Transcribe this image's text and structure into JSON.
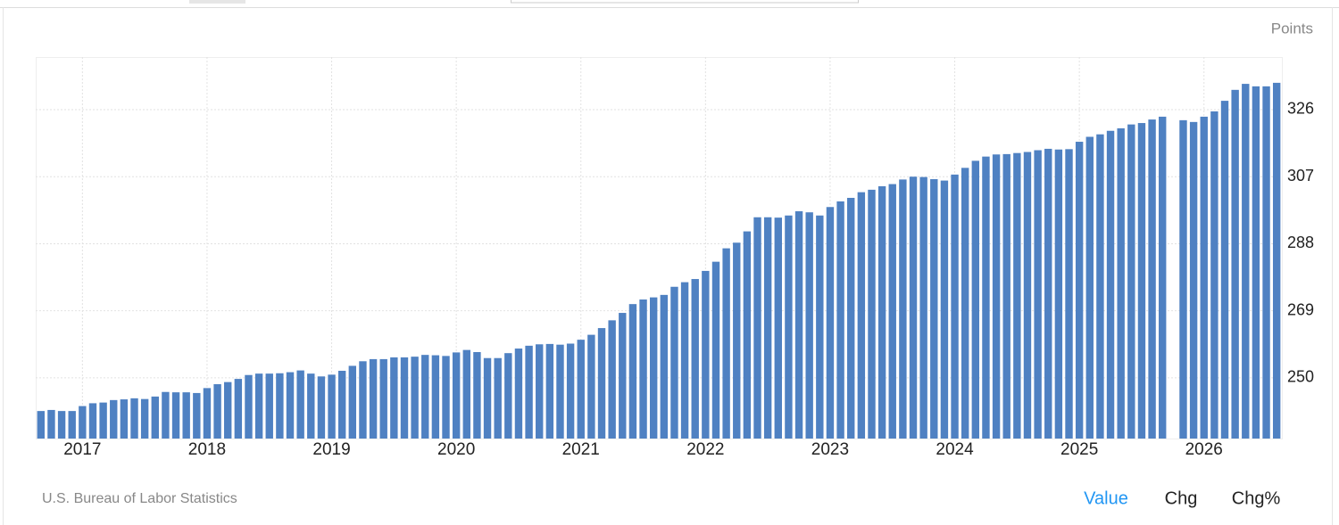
{
  "chart_data": {
    "type": "bar",
    "unit_label": "Points",
    "source": "U.S. Bureau of Labor Statistics",
    "categories": [
      null,
      null,
      null,
      null,
      "2017",
      null,
      null,
      null,
      null,
      null,
      null,
      null,
      null,
      null,
      null,
      null,
      "2018",
      null,
      null,
      null,
      null,
      null,
      null,
      null,
      null,
      null,
      null,
      null,
      "2019",
      null,
      null,
      null,
      null,
      null,
      null,
      null,
      null,
      null,
      null,
      null,
      "2020",
      null,
      null,
      null,
      null,
      null,
      null,
      null,
      null,
      null,
      null,
      null,
      "2021",
      null,
      null,
      null,
      null,
      null,
      null,
      null,
      null,
      null,
      null,
      null,
      "2022",
      null,
      null,
      null,
      null,
      null,
      null,
      null,
      null,
      null,
      null,
      null,
      "2023",
      null,
      null,
      null,
      null,
      null,
      null,
      null,
      null,
      null,
      null,
      null,
      "2024",
      null,
      null,
      null,
      null,
      null,
      null,
      null,
      null,
      null,
      null,
      null,
      "2025",
      null,
      null,
      null,
      null,
      null,
      null,
      null,
      null,
      null,
      null,
      null,
      "2026",
      null,
      null,
      null,
      null,
      null,
      null,
      null
    ],
    "values": [
      240.6,
      240.9,
      240.6,
      240.6,
      242.0,
      242.8,
      243.0,
      243.7,
      243.9,
      244.2,
      244.0,
      244.7,
      246.0,
      245.9,
      245.9,
      245.7,
      247.1,
      248.2,
      248.8,
      249.7,
      250.8,
      251.2,
      251.2,
      251.3,
      251.6,
      252.1,
      251.2,
      250.4,
      250.9,
      252.0,
      253.4,
      254.7,
      255.3,
      255.3,
      255.8,
      255.8,
      256.0,
      256.5,
      256.4,
      256.2,
      257.2,
      257.9,
      257.3,
      255.6,
      255.6,
      257.0,
      258.3,
      259.1,
      259.5,
      259.6,
      259.4,
      259.7,
      260.8,
      262.2,
      264.1,
      266.3,
      268.4,
      270.9,
      272.2,
      272.8,
      273.5,
      275.8,
      277.1,
      278.0,
      280.3,
      282.9,
      286.7,
      288.3,
      291.5,
      295.5,
      295.5,
      295.4,
      296.0,
      297.2,
      296.9,
      296.0,
      298.4,
      300.0,
      301.0,
      302.6,
      303.3,
      304.3,
      304.9,
      306.2,
      307.0,
      306.9,
      306.3,
      305.9,
      307.6,
      309.5,
      311.5,
      312.7,
      313.3,
      313.4,
      313.7,
      314.0,
      314.5,
      314.9,
      314.7,
      314.8,
      316.9,
      318.3,
      319.0,
      320.0,
      320.7,
      321.8,
      322.2,
      323.2,
      324.0,
      null,
      323.0,
      322.5,
      324.0,
      325.5,
      328.5,
      331.6,
      333.3,
      332.6,
      332.6,
      333.6
    ],
    "color": "#4f81c2",
    "ylim": [
      232.8,
      340.9
    ],
    "yticks": [
      250,
      269,
      288,
      307,
      326
    ],
    "grid": true
  },
  "tabs": [
    "Value",
    "Chg",
    "Chg%"
  ]
}
